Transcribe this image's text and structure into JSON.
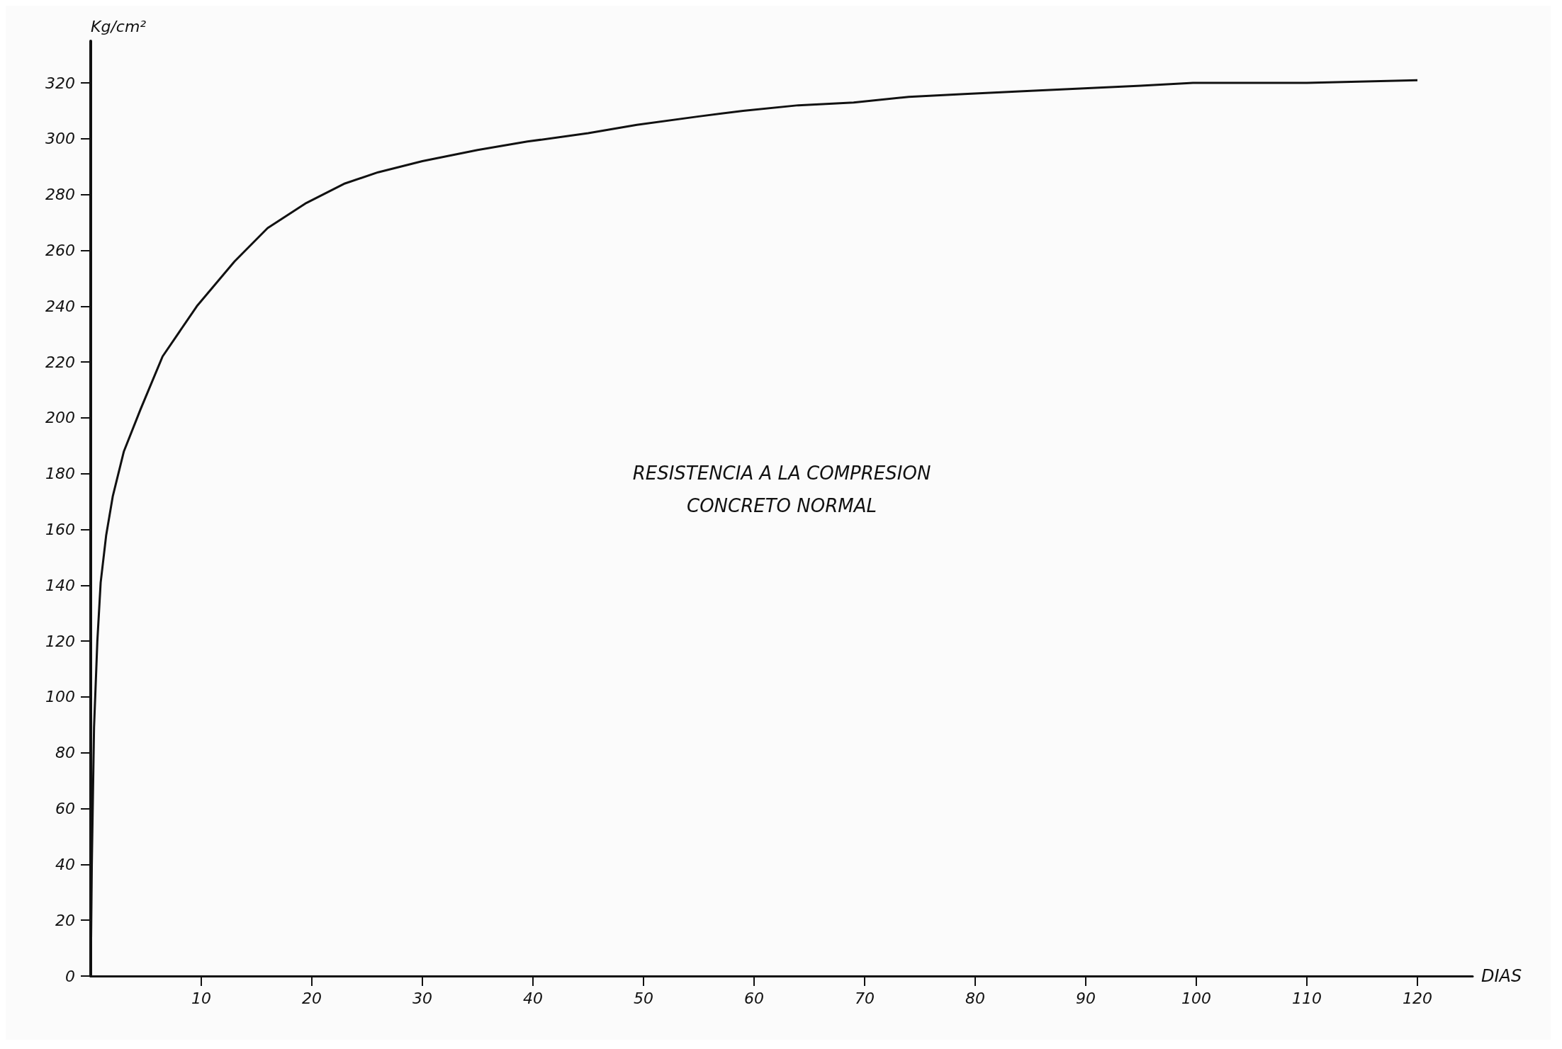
{
  "chart_data": {
    "type": "line",
    "title": "RESISTENCIA A LA COMPRESION",
    "subtitle": "CONCRETO NORMAL",
    "xlabel": "DIAS",
    "ylabel": "Kg/cm²",
    "series": [
      {
        "color": "#111111",
        "x": [
          0,
          0.1,
          0.3,
          0.6,
          0.9,
          1.4,
          2,
          3,
          4.5,
          6.5,
          9.6,
          13,
          16,
          19.5,
          23,
          26,
          30,
          35,
          39.5,
          45,
          49.4,
          55,
          59,
          64,
          69,
          74,
          79,
          84,
          89.5,
          95,
          99.7,
          110,
          120
        ],
        "values": [
          0,
          40,
          89,
          120,
          141,
          158,
          172,
          188,
          203,
          222,
          240,
          256,
          268,
          277,
          284,
          288,
          292,
          296,
          299,
          302,
          305,
          308,
          310,
          312,
          313,
          315,
          316,
          317,
          318,
          319,
          320,
          320,
          321
        ]
      }
    ],
    "xlim": [
      0,
      125
    ],
    "xticks": [
      10,
      20,
      30,
      40,
      50,
      60,
      70,
      80,
      90,
      100,
      110,
      120
    ],
    "ylim": [
      0,
      335
    ],
    "yticks": [
      0,
      20,
      40,
      60,
      80,
      100,
      120,
      140,
      160,
      180,
      200,
      220,
      240,
      260,
      280,
      300,
      320
    ],
    "grid": false,
    "marker": "none",
    "line_style": "solid"
  }
}
